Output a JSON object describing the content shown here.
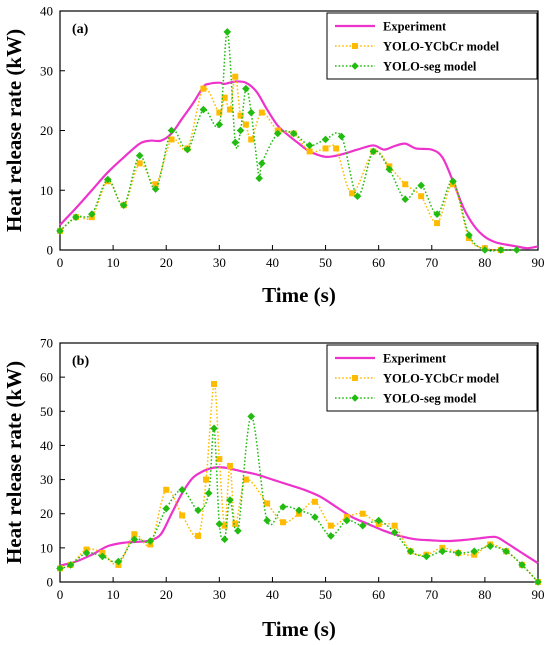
{
  "chart_data": [
    {
      "type": "line",
      "panel_label": "(a)",
      "xlabel": "Time (s)",
      "ylabel": "Heat release rate (kW)",
      "xlim": [
        0,
        90
      ],
      "ylim": [
        0,
        40
      ],
      "xticks": [
        0,
        10,
        20,
        30,
        40,
        50,
        60,
        70,
        80,
        90
      ],
      "yticks": [
        0,
        10,
        20,
        30,
        40
      ],
      "legend_position": "top-right",
      "series": [
        {
          "name": "Experiment",
          "color": "#ee33cc",
          "style": "solid",
          "marker": "none",
          "x": [
            0,
            3,
            6,
            9,
            12,
            15,
            17,
            19,
            21,
            23,
            25,
            27,
            28,
            30,
            31,
            33,
            35,
            37,
            39,
            41,
            43,
            45,
            47,
            50,
            53,
            56,
            59,
            61,
            63,
            65,
            67,
            70,
            72,
            74,
            76,
            78,
            80,
            82,
            84,
            86,
            88,
            90
          ],
          "y": [
            4.2,
            7,
            10,
            13,
            15.5,
            17.8,
            18.3,
            18.3,
            19.5,
            22,
            24.5,
            27.3,
            27.8,
            28,
            27.8,
            28.2,
            28,
            26.5,
            23.5,
            20.8,
            19.2,
            17.8,
            16.5,
            15.6,
            16,
            16.8,
            17.5,
            16.8,
            17.4,
            17.8,
            17,
            16.8,
            15.5,
            11.5,
            7,
            4,
            2.2,
            1.3,
            0.9,
            0.6,
            0.3,
            0.6
          ]
        },
        {
          "name": "YOLO-YCbCr model",
          "color": "#ffbb00",
          "style": "dotted",
          "marker": "square",
          "x": [
            0,
            3,
            6,
            9,
            12,
            15,
            18,
            21,
            24,
            27,
            30,
            31,
            32,
            33,
            34,
            35,
            36,
            38,
            41,
            44,
            47,
            50,
            52,
            55,
            59,
            62,
            65,
            68,
            71,
            74,
            77,
            80,
            83
          ],
          "y": [
            3.2,
            5.5,
            5.5,
            11.5,
            7.5,
            14.5,
            11,
            18.5,
            17,
            27,
            23,
            25.5,
            23.5,
            29,
            22.5,
            21,
            18.5,
            23,
            20,
            19.5,
            16.5,
            17,
            17,
            9.5,
            16.5,
            14,
            11,
            9,
            4.5,
            11,
            2,
            0.3,
            0
          ]
        },
        {
          "name": "YOLO-seg model",
          "color": "#22bb11",
          "style": "dotted",
          "marker": "diamond",
          "x": [
            0,
            3,
            6,
            9,
            12,
            15,
            18,
            21,
            24,
            27,
            30,
            31.5,
            33,
            34,
            35,
            36,
            37.5,
            38,
            41,
            44,
            47,
            50,
            53,
            56,
            59,
            62,
            65,
            68,
            71,
            74,
            77,
            80,
            83,
            86
          ],
          "y": [
            3.2,
            5.5,
            6,
            11.8,
            7.5,
            15.8,
            10.2,
            20,
            16.8,
            23.5,
            21,
            36.5,
            18,
            20,
            27,
            23,
            12,
            14.5,
            19.5,
            19.5,
            17.5,
            18.5,
            19,
            9,
            16.5,
            13.5,
            8.5,
            10.8,
            6,
            11.5,
            2.5,
            0,
            0,
            0
          ]
        }
      ]
    },
    {
      "type": "line",
      "panel_label": "(b)",
      "xlabel": "Time (s)",
      "ylabel": "Heat release rate (kW)",
      "xlim": [
        0,
        90
      ],
      "ylim": [
        0,
        70
      ],
      "xticks": [
        0,
        10,
        20,
        30,
        40,
        50,
        60,
        70,
        80,
        90
      ],
      "yticks": [
        0,
        10,
        20,
        30,
        40,
        50,
        60,
        70
      ],
      "legend_position": "top-right",
      "series": [
        {
          "name": "Experiment",
          "color": "#ee33cc",
          "style": "solid",
          "marker": "none",
          "x": [
            0,
            3,
            6,
            9,
            12,
            15,
            17,
            19,
            21,
            23,
            25,
            27,
            29,
            31,
            34,
            37,
            40,
            43,
            46,
            49,
            52,
            55,
            58,
            61,
            64,
            67,
            70,
            73,
            76,
            79,
            82,
            84,
            86,
            88,
            90
          ],
          "y": [
            4.8,
            6,
            8,
            10.5,
            11.5,
            11.8,
            12.2,
            14,
            20,
            26,
            30.5,
            32.5,
            33.5,
            33.5,
            32.5,
            31.5,
            30,
            28.5,
            27,
            25,
            22,
            19,
            17,
            15,
            13.5,
            12.5,
            12.2,
            12,
            12.3,
            12.8,
            13.2,
            11.5,
            9.5,
            7.5,
            5.5
          ]
        },
        {
          "name": "YOLO-YCbCr model",
          "color": "#ffbb00",
          "style": "dotted",
          "marker": "square",
          "x": [
            0,
            2,
            5,
            8,
            11,
            14,
            17,
            20,
            23,
            26,
            27.5,
            29,
            30,
            31,
            32,
            33,
            35,
            39,
            42,
            45,
            48,
            51,
            54,
            57,
            60,
            63,
            66,
            69,
            72,
            75,
            78,
            81,
            84,
            87,
            90
          ],
          "y": [
            4,
            5,
            9.5,
            8.5,
            5,
            14,
            11,
            27,
            19.5,
            13.5,
            30,
            58,
            36,
            16.5,
            34,
            17,
            30,
            23,
            17.5,
            20,
            23.5,
            16.5,
            19,
            20,
            17,
            16.5,
            9,
            8,
            10,
            8.5,
            8,
            11,
            9,
            5,
            0
          ]
        },
        {
          "name": "YOLO-seg model",
          "color": "#22bb11",
          "style": "dotted",
          "marker": "diamond",
          "x": [
            0,
            2,
            5,
            8,
            11,
            14,
            17,
            20,
            23,
            26,
            28,
            29,
            30,
            31,
            32,
            33.5,
            36,
            39,
            42,
            45,
            48,
            51,
            54,
            57,
            60,
            63,
            66,
            69,
            72,
            75,
            78,
            81,
            84,
            87,
            90
          ],
          "y": [
            4,
            5,
            8.5,
            7.5,
            6,
            12.5,
            12,
            21.5,
            27,
            21,
            26,
            45,
            17,
            12.5,
            24,
            15,
            48.5,
            18,
            22,
            21,
            19,
            13.5,
            18,
            16.5,
            18,
            14.5,
            9,
            7.5,
            9,
            8.5,
            9,
            10.5,
            9,
            5,
            0
          ]
        }
      ]
    }
  ]
}
